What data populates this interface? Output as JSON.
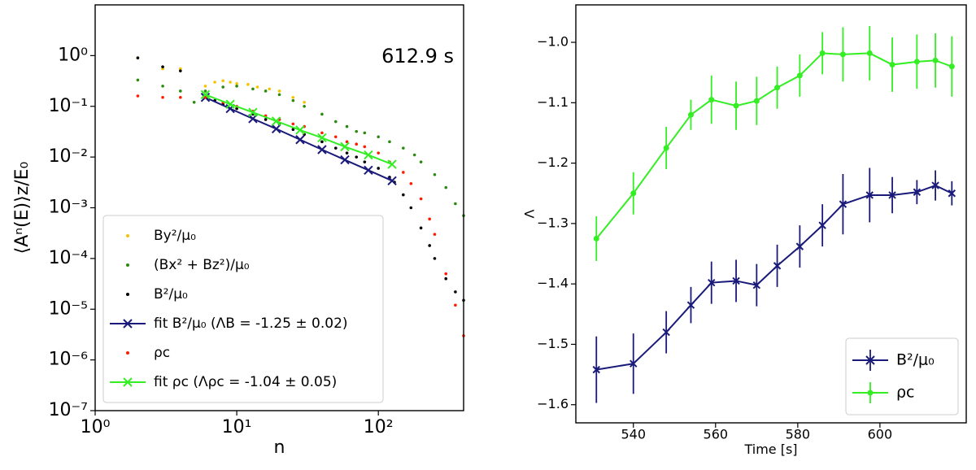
{
  "chart_data": [
    {
      "type": "scatter",
      "log_x": true,
      "log_y": true,
      "xlabel": "n",
      "ylabel": "⟨Aⁿ(E)⟩z/E₀",
      "annotation": "612.9 s",
      "xlim": [
        1,
        400
      ],
      "ylim": [
        1e-07,
        10
      ],
      "xticks": [
        {
          "value": 1,
          "label": "10⁰"
        },
        {
          "value": 10,
          "label": "10¹"
        },
        {
          "value": 100,
          "label": "10²"
        }
      ],
      "yticks": [
        {
          "value": 1e-07,
          "label": "10⁻⁷"
        },
        {
          "value": 1e-06,
          "label": "10⁻⁶"
        },
        {
          "value": 1e-05,
          "label": "10⁻⁵"
        },
        {
          "value": 0.0001,
          "label": "10⁻⁴"
        },
        {
          "value": 0.001,
          "label": "10⁻³"
        },
        {
          "value": 0.01,
          "label": "10⁻²"
        },
        {
          "value": 0.1,
          "label": "10⁻¹"
        },
        {
          "value": 1,
          "label": "10⁰"
        }
      ],
      "legend": "lower left",
      "series": [
        {
          "name": "By²/μ₀",
          "color": "#f5c400",
          "marker": ".",
          "x": [
            2,
            3,
            4,
            6,
            7,
            8,
            9,
            10,
            12,
            14,
            17,
            20,
            25,
            30
          ],
          "values": [
            0.9,
            0.55,
            0.55,
            0.25,
            0.3,
            0.32,
            0.3,
            0.28,
            0.27,
            0.24,
            0.22,
            0.2,
            0.15,
            0.12
          ]
        },
        {
          "name": "(Bx² + Bz²)/μ₀",
          "color": "#2a8a10",
          "marker": ".",
          "x": [
            2,
            3,
            4,
            5,
            6,
            8,
            10,
            13,
            16,
            20,
            25,
            30,
            40,
            50,
            60,
            70,
            80,
            100,
            120,
            150,
            180,
            200,
            250,
            300,
            350,
            400
          ],
          "values": [
            0.33,
            0.25,
            0.2,
            0.12,
            0.2,
            0.24,
            0.25,
            0.22,
            0.2,
            0.17,
            0.13,
            0.1,
            0.07,
            0.05,
            0.04,
            0.032,
            0.03,
            0.025,
            0.02,
            0.015,
            0.011,
            0.008,
            0.0045,
            0.0025,
            0.0012,
            0.0007
          ]
        },
        {
          "name": "B²/μ₀",
          "color": "#000000",
          "marker": ".",
          "x": [
            2,
            3,
            4,
            6,
            7,
            8,
            10,
            13,
            16,
            20,
            25,
            30,
            40,
            50,
            60,
            70,
            80,
            100,
            120,
            130,
            150,
            170,
            200,
            230,
            250,
            300,
            350,
            400
          ],
          "values": [
            0.9,
            0.6,
            0.5,
            0.15,
            0.13,
            0.11,
            0.09,
            0.07,
            0.055,
            0.045,
            0.035,
            0.028,
            0.02,
            0.015,
            0.012,
            0.01,
            0.008,
            0.006,
            0.004,
            0.0032,
            0.0018,
            0.001,
            0.0004,
            0.00018,
            0.0001,
            4e-05,
            2.2e-05,
            1.5e-05
          ]
        },
        {
          "name": "fit B²/μ₀ (ΛB = -1.25 ± 0.02)",
          "color": "#1a1a7a",
          "marker": "x",
          "x": [
            6,
            9,
            13,
            19,
            28,
            40,
            58,
            85,
            125
          ],
          "values": [
            0.15,
            0.09,
            0.057,
            0.036,
            0.022,
            0.014,
            0.0088,
            0.0055,
            0.0034
          ]
        },
        {
          "name": "ρc",
          "color": "#ff1a00",
          "marker": ".",
          "x": [
            2,
            3,
            4,
            6,
            8,
            10,
            13,
            16,
            20,
            25,
            30,
            40,
            50,
            60,
            70,
            80,
            100,
            120,
            150,
            170,
            200,
            230,
            250,
            300,
            350,
            400
          ],
          "values": [
            0.16,
            0.15,
            0.15,
            0.15,
            0.12,
            0.1,
            0.08,
            0.065,
            0.055,
            0.045,
            0.04,
            0.03,
            0.025,
            0.02,
            0.018,
            0.016,
            0.012,
            0.008,
            0.005,
            0.003,
            0.0015,
            0.0006,
            0.0003,
            5e-05,
            1.2e-05,
            3e-06
          ]
        },
        {
          "name": "fit ρc (Λρc = -1.04 ± 0.05)",
          "color": "#33ee22",
          "marker": "x",
          "x": [
            6,
            9,
            13,
            19,
            28,
            40,
            58,
            85,
            125
          ],
          "values": [
            0.17,
            0.11,
            0.076,
            0.051,
            0.034,
            0.024,
            0.016,
            0.011,
            0.0072
          ]
        }
      ]
    },
    {
      "type": "line",
      "xlabel": "Time [s]",
      "ylabel": "Λ",
      "xlim": [
        526,
        621
      ],
      "ylim": [
        -1.63,
        -0.938
      ],
      "xticks": [
        540,
        560,
        580,
        600
      ],
      "yticks": [
        {
          "value": -1.6,
          "label": "−1.6"
        },
        {
          "value": -1.5,
          "label": "−1.5"
        },
        {
          "value": -1.4,
          "label": "−1.4"
        },
        {
          "value": -1.3,
          "label": "−1.3"
        },
        {
          "value": -1.2,
          "label": "−1.2"
        },
        {
          "value": -1.1,
          "label": "−1.1"
        },
        {
          "value": -1.0,
          "label": "−1.0"
        }
      ],
      "legend": "lower right",
      "x": [
        531,
        540,
        548,
        554,
        559,
        565,
        570,
        575,
        580.5,
        586,
        591,
        597.5,
        603,
        609,
        613.5,
        617.5
      ],
      "series": [
        {
          "name": "B²/μ₀",
          "color": "#1a1a7a",
          "marker": "x",
          "values": [
            -1.542,
            -1.532,
            -1.48,
            -1.435,
            -1.398,
            -1.395,
            -1.402,
            -1.37,
            -1.338,
            -1.303,
            -1.268,
            -1.253,
            -1.253,
            -1.248,
            -1.237,
            -1.25
          ],
          "errors": [
            0.055,
            0.05,
            0.035,
            0.03,
            0.035,
            0.035,
            0.035,
            0.035,
            0.035,
            0.035,
            0.05,
            0.045,
            0.03,
            0.02,
            0.025,
            0.02
          ]
        },
        {
          "name": "ρc",
          "color": "#33ee22",
          "marker": "o",
          "values": [
            -1.325,
            -1.25,
            -1.175,
            -1.12,
            -1.095,
            -1.105,
            -1.097,
            -1.075,
            -1.055,
            -1.018,
            -1.02,
            -1.018,
            -1.037,
            -1.032,
            -1.03,
            -1.04
          ],
          "errors": [
            0.037,
            0.035,
            0.035,
            0.025,
            0.04,
            0.04,
            0.04,
            0.035,
            0.035,
            0.035,
            0.045,
            0.045,
            0.045,
            0.045,
            0.045,
            0.05
          ]
        }
      ]
    }
  ]
}
